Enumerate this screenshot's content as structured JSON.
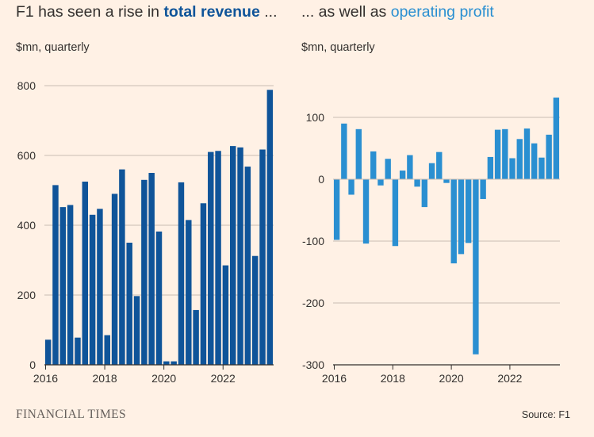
{
  "header": {
    "left_title_prefix": "F1 has seen a rise in ",
    "left_title_highlight": "total revenue",
    "left_title_suffix": " ...",
    "right_title_prefix": "... as well as ",
    "right_title_highlight": "operating profit",
    "left_unit": "$mn, quarterly",
    "right_unit": "$mn, quarterly"
  },
  "footer": {
    "logo": "FINANCIAL TIMES",
    "source": "Source: F1"
  },
  "colors": {
    "background": "#FFF1E5",
    "revenue": "#0F5499",
    "profit": "#2A8FD1",
    "grid": "#C9BDB2",
    "baseline": "#33302E"
  },
  "chart_data": [
    {
      "type": "bar",
      "series": [
        {
          "name": "total revenue",
          "values": [
            72,
            515,
            452,
            458,
            78,
            525,
            430,
            447,
            85,
            490,
            560,
            350,
            197,
            530,
            550,
            382,
            10,
            10,
            523,
            415,
            157,
            463,
            610,
            613,
            285,
            627,
            623,
            568,
            312,
            617,
            788
          ]
        }
      ],
      "x_start": "2016-Q1",
      "ylim": [
        0,
        800
      ],
      "yticks": [
        0,
        200,
        400,
        600,
        800
      ],
      "xticks": [
        "2016",
        "2018",
        "2020",
        "2022"
      ],
      "grid": true
    },
    {
      "type": "bar",
      "series": [
        {
          "name": "operating profit",
          "values": [
            -98,
            90,
            -25,
            81,
            -104,
            45,
            -10,
            33,
            -108,
            14,
            39,
            -12,
            -45,
            26,
            44,
            -6,
            -136,
            -121,
            -103,
            -283,
            -32,
            36,
            80,
            81,
            34,
            65,
            82,
            58,
            35,
            72,
            132
          ]
        }
      ],
      "x_start": "2016-Q1",
      "ylim": [
        -300,
        130
      ],
      "yticks": [
        -300,
        -200,
        -100,
        0,
        100
      ],
      "xticks": [
        "2016",
        "2018",
        "2020",
        "2022"
      ],
      "grid": true
    }
  ]
}
